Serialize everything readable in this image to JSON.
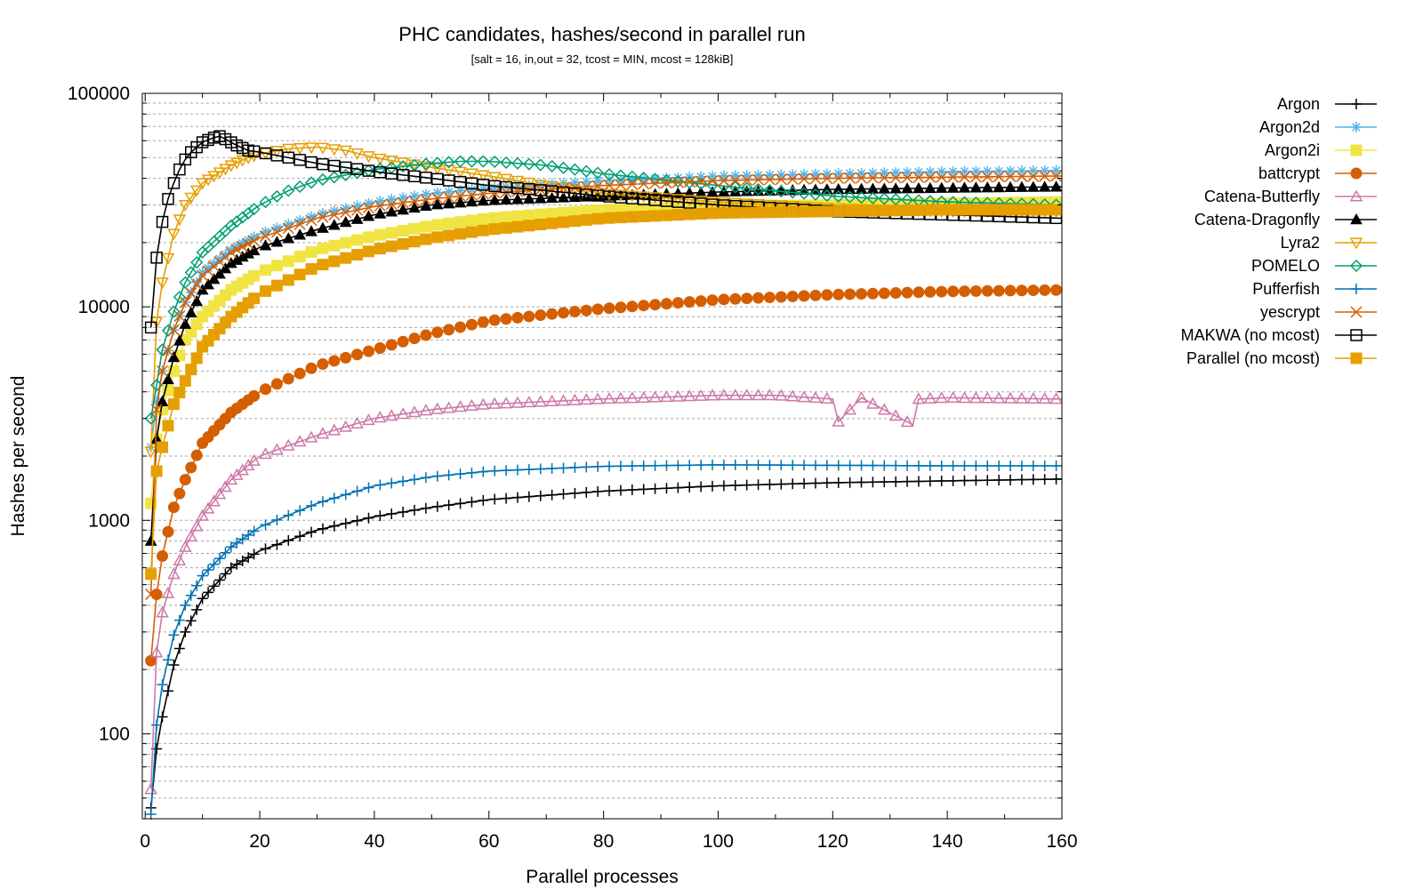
{
  "chart_data": {
    "type": "line",
    "title": "PHC candidates, hashes/second in parallel run",
    "subtitle": "[salt = 16, in,out = 32, tcost = MIN, mcost = 128kiB]",
    "xlabel": "Parallel processes",
    "ylabel": "Hashes per second",
    "xlim": [
      -0.5,
      160
    ],
    "ylim": [
      40,
      100000
    ],
    "y_scale": "log",
    "grid": "horizontal minor and major (dashed gray)",
    "legend_position": "right-outside",
    "x_ticks": [
      0,
      20,
      40,
      60,
      80,
      100,
      120,
      140,
      160
    ],
    "x_tick_labels": [
      "0",
      "20",
      "40",
      "60",
      "80",
      "100",
      "120",
      "140",
      "160"
    ],
    "y_ticks": [
      100,
      1000,
      10000,
      100000
    ],
    "y_tick_labels": [
      "100",
      "1000",
      "10000",
      "100000"
    ],
    "series": [
      {
        "name": "Argon",
        "color": "#000000",
        "marker": "plus",
        "x": [
          1,
          2,
          3,
          5,
          7,
          10,
          15,
          20,
          30,
          40,
          50,
          60,
          80,
          100,
          120,
          140,
          160
        ],
        "values": [
          45,
          85,
          120,
          210,
          300,
          430,
          600,
          720,
          900,
          1040,
          1150,
          1250,
          1370,
          1450,
          1500,
          1530,
          1560
        ]
      },
      {
        "name": "Argon2d",
        "color": "#56b4e9",
        "marker": "star",
        "x": [
          1,
          2,
          3,
          5,
          7,
          10,
          15,
          20,
          30,
          40,
          50,
          60,
          80,
          100,
          120,
          140,
          160
        ],
        "values": [
          2200,
          3600,
          5000,
          7800,
          10500,
          14500,
          18500,
          22000,
          27000,
          31000,
          34000,
          36000,
          39000,
          41000,
          42000,
          43000,
          43500
        ]
      },
      {
        "name": "Argon2i",
        "color": "#f0e442",
        "marker": "filled-square",
        "x": [
          1,
          2,
          3,
          5,
          7,
          10,
          15,
          20,
          30,
          40,
          50,
          60,
          80,
          100,
          120,
          140,
          160
        ],
        "values": [
          1200,
          2400,
          3300,
          5000,
          7000,
          9000,
          12000,
          14500,
          18500,
          21500,
          24000,
          26000,
          28500,
          29500,
          30000,
          30500,
          31000
        ]
      },
      {
        "name": "battcrypt",
        "color": "#d55e00",
        "marker": "filled-circle",
        "x": [
          1,
          2,
          3,
          5,
          7,
          10,
          15,
          20,
          30,
          40,
          50,
          60,
          70,
          80,
          100,
          120,
          140,
          160
        ],
        "values": [
          220,
          450,
          680,
          1150,
          1550,
          2300,
          3200,
          4000,
          5300,
          6300,
          7500,
          8600,
          9200,
          9800,
          10800,
          11400,
          11800,
          12000
        ]
      },
      {
        "name": "Catena-Butterfly",
        "color": "#cc79a7",
        "marker": "open-triangle",
        "x": [
          1,
          2,
          3,
          5,
          7,
          10,
          15,
          20,
          30,
          40,
          50,
          60,
          80,
          100,
          110,
          120,
          121,
          125,
          134,
          135,
          140,
          160
        ],
        "values": [
          55,
          240,
          370,
          560,
          750,
          1050,
          1550,
          2000,
          2500,
          3000,
          3300,
          3500,
          3700,
          3850,
          3850,
          3700,
          2900,
          3750,
          2800,
          3700,
          3750,
          3700
        ]
      },
      {
        "name": "Catena-Dragonfly",
        "color": "#000000",
        "marker": "filled-triangle",
        "x": [
          1,
          2,
          3,
          5,
          7,
          10,
          15,
          20,
          30,
          40,
          50,
          60,
          80,
          100,
          120,
          140,
          160
        ],
        "values": [
          800,
          2400,
          3600,
          5800,
          8300,
          12000,
          16000,
          19000,
          23000,
          27000,
          30000,
          31500,
          33000,
          34500,
          35500,
          36000,
          36500
        ]
      },
      {
        "name": "Lyra2",
        "color": "#e69f00",
        "marker": "open-inverted-triangle",
        "x": [
          1,
          2,
          3,
          5,
          7,
          10,
          15,
          18,
          20,
          25,
          30,
          35,
          40,
          50,
          60,
          70,
          80,
          100,
          120,
          140,
          160
        ],
        "values": [
          2100,
          8500,
          13000,
          22000,
          30000,
          38000,
          46000,
          50000,
          52000,
          55000,
          56000,
          54000,
          50000,
          45000,
          41000,
          37000,
          34000,
          31000,
          29000,
          28000,
          28000
        ]
      },
      {
        "name": "POMELO",
        "color": "#009e73",
        "marker": "open-diamond",
        "x": [
          1,
          2,
          3,
          5,
          7,
          10,
          15,
          20,
          25,
          30,
          40,
          50,
          55,
          60,
          70,
          80,
          100,
          120,
          140,
          160
        ],
        "values": [
          3000,
          4300,
          6300,
          9500,
          13000,
          18000,
          24000,
          30000,
          35000,
          39000,
          44000,
          47000,
          48000,
          48000,
          46000,
          42000,
          37000,
          33000,
          31000,
          30000
        ]
      },
      {
        "name": "Pufferfish",
        "color": "#0072b2",
        "marker": "plus",
        "x": [
          1,
          2,
          3,
          5,
          7,
          10,
          15,
          20,
          30,
          40,
          50,
          60,
          80,
          100,
          120,
          140,
          160
        ],
        "values": [
          42,
          110,
          170,
          290,
          400,
          550,
          750,
          930,
          1200,
          1450,
          1600,
          1700,
          1790,
          1820,
          1810,
          1800,
          1800
        ]
      },
      {
        "name": "yescrypt",
        "color": "#d55e00",
        "marker": "cross",
        "x": [
          1,
          2,
          3,
          5,
          7,
          10,
          15,
          20,
          30,
          40,
          50,
          60,
          80,
          100,
          120,
          140,
          160
        ],
        "values": [
          450,
          3300,
          5000,
          7800,
          10500,
          14000,
          18000,
          21000,
          26000,
          29500,
          32000,
          34000,
          37000,
          39000,
          40000,
          40500,
          41000
        ]
      },
      {
        "name": "MAKWA (no mcost)",
        "color": "#000000",
        "marker": "open-square",
        "x": [
          1,
          2,
          3,
          4,
          5,
          6,
          7,
          8,
          10,
          12,
          13,
          14,
          16,
          18,
          20,
          25,
          30,
          40,
          50,
          60,
          70,
          80,
          100,
          120,
          140,
          160
        ],
        "values": [
          8000,
          17000,
          25000,
          32000,
          38000,
          44000,
          49000,
          53000,
          59000,
          62000,
          63000,
          61000,
          57000,
          54000,
          53000,
          50000,
          47000,
          43000,
          40000,
          37000,
          35000,
          33000,
          30000,
          28000,
          27000,
          26000
        ]
      },
      {
        "name": "Parallel (no mcost)",
        "color": "#e69f00",
        "marker": "filled-square",
        "x": [
          1,
          2,
          3,
          5,
          7,
          10,
          15,
          20,
          30,
          40,
          50,
          60,
          80,
          100,
          120,
          140,
          160
        ],
        "values": [
          560,
          1700,
          2200,
          3500,
          4500,
          6500,
          9000,
          11500,
          15500,
          18500,
          21000,
          23000,
          26000,
          27500,
          28000,
          28500,
          28500
        ]
      }
    ]
  }
}
